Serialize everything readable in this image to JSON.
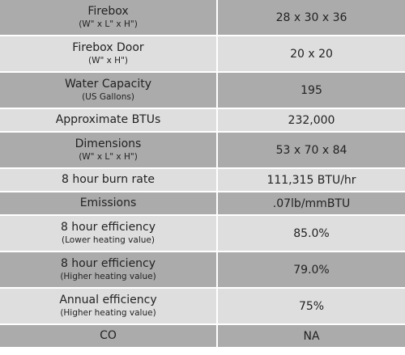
{
  "table": {
    "rows": [
      {
        "label": "Firebox",
        "sublabel": "(W\" x L\" x H\")",
        "value": "28 x 30 x 36"
      },
      {
        "label": "Firebox Door",
        "sublabel": "(W\" x H\")",
        "value": "20 x 20"
      },
      {
        "label": "Water Capacity",
        "sublabel": "(US Gallons)",
        "value": "195"
      },
      {
        "label": "Approximate BTUs",
        "value": "232,000"
      },
      {
        "label": "Dimensions",
        "sublabel": "(W\" x L\" x H\")",
        "value": "53 x 70 x 84"
      },
      {
        "label": "8 hour burn rate",
        "value": "111,315 BTU/hr"
      },
      {
        "label": "Emissions",
        "value": ".07lb/mmBTU"
      },
      {
        "label": "8 hour efficiency",
        "sublabel": "(Lower heating value)",
        "value": "85.0%"
      },
      {
        "label": "8 hour efficiency",
        "sublabel": "(Higher heating value)",
        "value": "79.0%"
      },
      {
        "label": "Annual efficiency",
        "sublabel": "(Higher heating value)",
        "value": "75%"
      },
      {
        "label": "CO",
        "value": "NA"
      }
    ]
  }
}
